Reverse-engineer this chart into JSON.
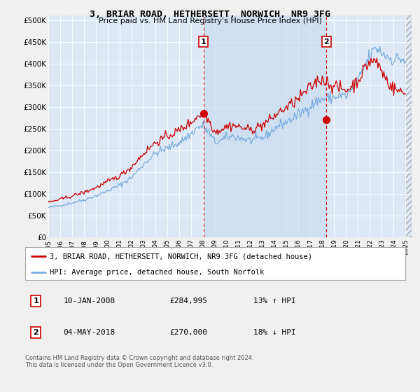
{
  "title": "3, BRIAR ROAD, HETHERSETT, NORWICH, NR9 3FG",
  "subtitle": "Price paid vs. HM Land Registry's House Price Index (HPI)",
  "ylabel_ticks": [
    "£0",
    "£50K",
    "£100K",
    "£150K",
    "£200K",
    "£250K",
    "£300K",
    "£350K",
    "£400K",
    "£450K",
    "£500K"
  ],
  "ytick_values": [
    0,
    50000,
    100000,
    150000,
    200000,
    250000,
    300000,
    350000,
    400000,
    450000,
    500000
  ],
  "ylim": [
    0,
    510000
  ],
  "xlim_start": 1995.0,
  "xlim_end": 2025.5,
  "x_ticks": [
    1995,
    1996,
    1997,
    1998,
    1999,
    2000,
    2001,
    2002,
    2003,
    2004,
    2005,
    2006,
    2007,
    2008,
    2009,
    2010,
    2011,
    2012,
    2013,
    2014,
    2015,
    2016,
    2017,
    2018,
    2019,
    2020,
    2021,
    2022,
    2023,
    2024,
    2025
  ],
  "fig_bg_color": "#f0f0f0",
  "plot_bg_color": "#dce8f5",
  "shade_color": "#c8dcf0",
  "line1_color": "#cc0000",
  "line2_color": "#7aaadd",
  "vline_color": "#cc0000",
  "marker1_x": 2008.03,
  "marker1_y": 284995,
  "marker2_x": 2018.34,
  "marker2_y": 270000,
  "legend_label1": "3, BRIAR ROAD, HETHERSETT, NORWICH, NR9 3FG (detached house)",
  "legend_label2": "HPI: Average price, detached house, South Norfolk",
  "annotation1_date": "10-JAN-2008",
  "annotation1_price": "£284,995",
  "annotation1_hpi": "13% ↑ HPI",
  "annotation2_date": "04-MAY-2018",
  "annotation2_price": "£270,000",
  "annotation2_hpi": "18% ↓ HPI",
  "footer": "Contains HM Land Registry data © Crown copyright and database right 2024.\nThis data is licensed under the Open Government Licence v3.0."
}
